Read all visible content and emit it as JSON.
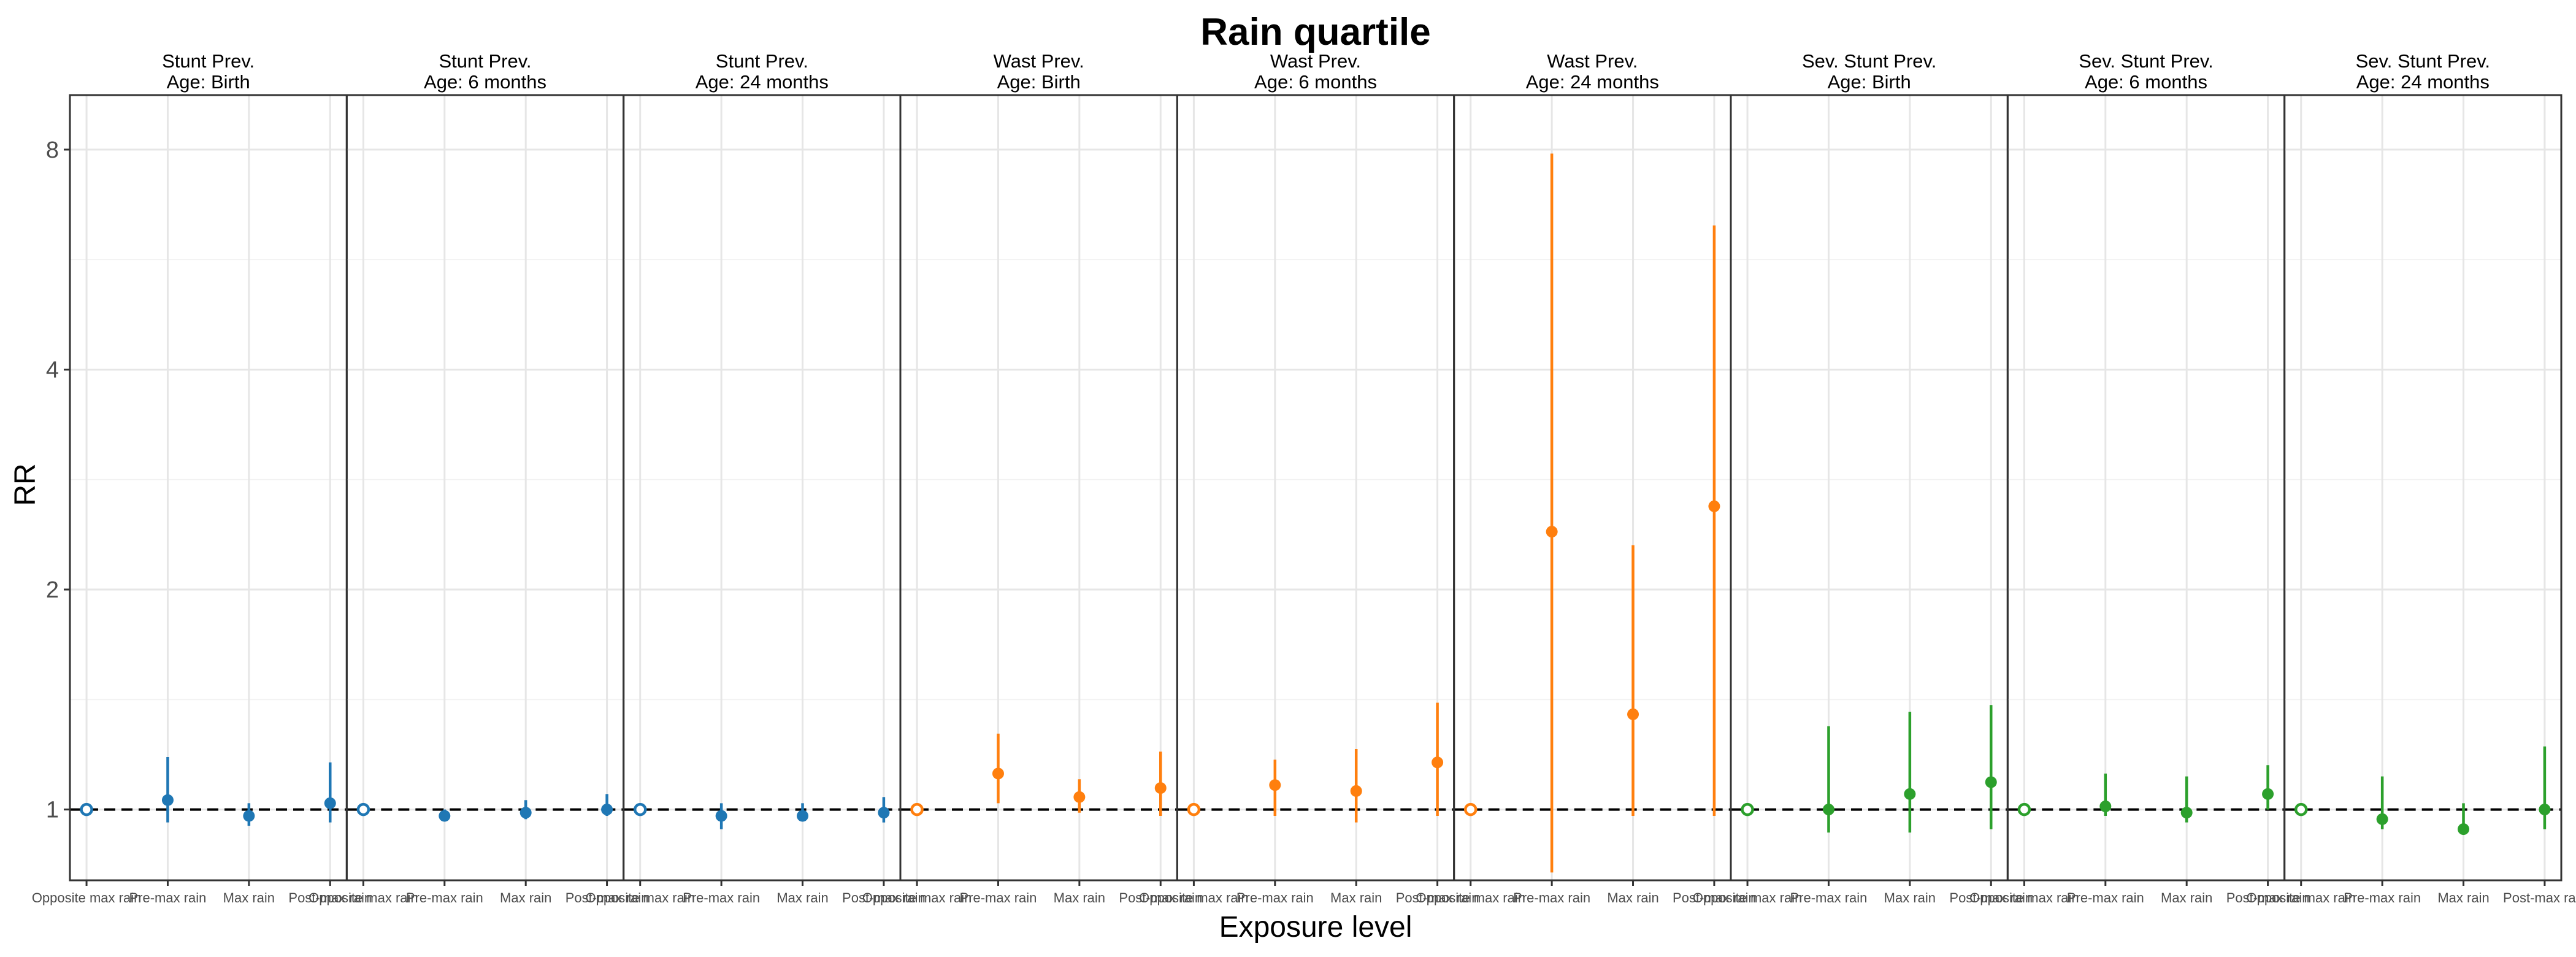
{
  "chart_data": {
    "type": "scatter",
    "title": "Rain quartile",
    "xlabel": "Exposure level",
    "ylabel": "RR",
    "y_scale": "log2",
    "ylim": [
      0.8,
      9.5
    ],
    "y_ticks": [
      "1",
      "2",
      "4",
      "8"
    ],
    "grid": true,
    "legend": "none",
    "reference_line": {
      "y": 1,
      "style": "dashed"
    },
    "categories": [
      "Opposite max rain",
      "Pre-max rain",
      "Max rain",
      "Post-max rain"
    ],
    "colors": {
      "stunt": "#1f77b4",
      "wast": "#ff7f0e",
      "sevstunt": "#2ca02c"
    },
    "panels": [
      {
        "strip1": "Stunt Prev.",
        "strip2": "Age: Birth",
        "color_key": "stunt",
        "points": [
          {
            "est": 1.0,
            "lo": 1.0,
            "hi": 1.0,
            "ref": true
          },
          {
            "est": 1.03,
            "lo": 0.96,
            "hi": 1.18,
            "ref": false
          },
          {
            "est": 0.98,
            "lo": 0.95,
            "hi": 1.02,
            "ref": false
          },
          {
            "est": 1.02,
            "lo": 0.96,
            "hi": 1.16,
            "ref": false
          }
        ]
      },
      {
        "strip1": "Stunt Prev.",
        "strip2": "Age: 6 months",
        "color_key": "stunt",
        "points": [
          {
            "est": 1.0,
            "lo": 1.0,
            "hi": 1.0,
            "ref": true
          },
          {
            "est": 0.98,
            "lo": 0.97,
            "hi": 1.0,
            "ref": false
          },
          {
            "est": 0.99,
            "lo": 0.97,
            "hi": 1.03,
            "ref": false
          },
          {
            "est": 1.0,
            "lo": 0.98,
            "hi": 1.05,
            "ref": false
          }
        ]
      },
      {
        "strip1": "Stunt Prev.",
        "strip2": "Age: 24 months",
        "color_key": "stunt",
        "points": [
          {
            "est": 1.0,
            "lo": 1.0,
            "hi": 1.0,
            "ref": true
          },
          {
            "est": 0.98,
            "lo": 0.94,
            "hi": 1.02,
            "ref": false
          },
          {
            "est": 0.98,
            "lo": 0.97,
            "hi": 1.02,
            "ref": false
          },
          {
            "est": 0.99,
            "lo": 0.96,
            "hi": 1.04,
            "ref": false
          }
        ]
      },
      {
        "strip1": "Wast Prev.",
        "strip2": "Age: Birth",
        "color_key": "wast",
        "points": [
          {
            "est": 1.0,
            "lo": 1.0,
            "hi": 1.0,
            "ref": true
          },
          {
            "est": 1.12,
            "lo": 1.02,
            "hi": 1.27,
            "ref": false
          },
          {
            "est": 1.04,
            "lo": 0.99,
            "hi": 1.1,
            "ref": false
          },
          {
            "est": 1.07,
            "lo": 0.98,
            "hi": 1.2,
            "ref": false
          }
        ]
      },
      {
        "strip1": "Wast Prev.",
        "strip2": "Age: 6 months",
        "color_key": "wast",
        "points": [
          {
            "est": 1.0,
            "lo": 1.0,
            "hi": 1.0,
            "ref": true
          },
          {
            "est": 1.08,
            "lo": 0.98,
            "hi": 1.17,
            "ref": false
          },
          {
            "est": 1.06,
            "lo": 0.96,
            "hi": 1.21,
            "ref": false
          },
          {
            "est": 1.16,
            "lo": 0.98,
            "hi": 1.4,
            "ref": false
          }
        ]
      },
      {
        "strip1": "Wast Prev.",
        "strip2": "Age: 24 months",
        "color_key": "wast",
        "points": [
          {
            "est": 1.0,
            "lo": 1.0,
            "hi": 1.0,
            "ref": true
          },
          {
            "est": 2.4,
            "lo": 0.82,
            "hi": 7.9,
            "ref": false
          },
          {
            "est": 1.35,
            "lo": 0.98,
            "hi": 2.3,
            "ref": false
          },
          {
            "est": 2.6,
            "lo": 0.98,
            "hi": 6.3,
            "ref": false
          }
        ]
      },
      {
        "strip1": "Sev. Stunt Prev.",
        "strip2": "Age: Birth",
        "color_key": "sevstunt",
        "points": [
          {
            "est": 1.0,
            "lo": 1.0,
            "hi": 1.0,
            "ref": true
          },
          {
            "est": 1.0,
            "lo": 0.93,
            "hi": 1.3,
            "ref": false
          },
          {
            "est": 1.05,
            "lo": 0.93,
            "hi": 1.36,
            "ref": false
          },
          {
            "est": 1.09,
            "lo": 0.94,
            "hi": 1.39,
            "ref": false
          }
        ]
      },
      {
        "strip1": "Sev. Stunt Prev.",
        "strip2": "Age: 6 months",
        "color_key": "sevstunt",
        "points": [
          {
            "est": 1.0,
            "lo": 1.0,
            "hi": 1.0,
            "ref": true
          },
          {
            "est": 1.01,
            "lo": 0.98,
            "hi": 1.12,
            "ref": false
          },
          {
            "est": 0.99,
            "lo": 0.96,
            "hi": 1.11,
            "ref": false
          },
          {
            "est": 1.05,
            "lo": 1.0,
            "hi": 1.15,
            "ref": false
          }
        ]
      },
      {
        "strip1": "Sev. Stunt Prev.",
        "strip2": "Age: 24 months",
        "color_key": "sevstunt",
        "points": [
          {
            "est": 1.0,
            "lo": 1.0,
            "hi": 1.0,
            "ref": true
          },
          {
            "est": 0.97,
            "lo": 0.94,
            "hi": 1.11,
            "ref": false
          },
          {
            "est": 0.94,
            "lo": 0.93,
            "hi": 1.02,
            "ref": false
          },
          {
            "est": 1.0,
            "lo": 0.94,
            "hi": 1.22,
            "ref": false
          }
        ]
      }
    ]
  }
}
